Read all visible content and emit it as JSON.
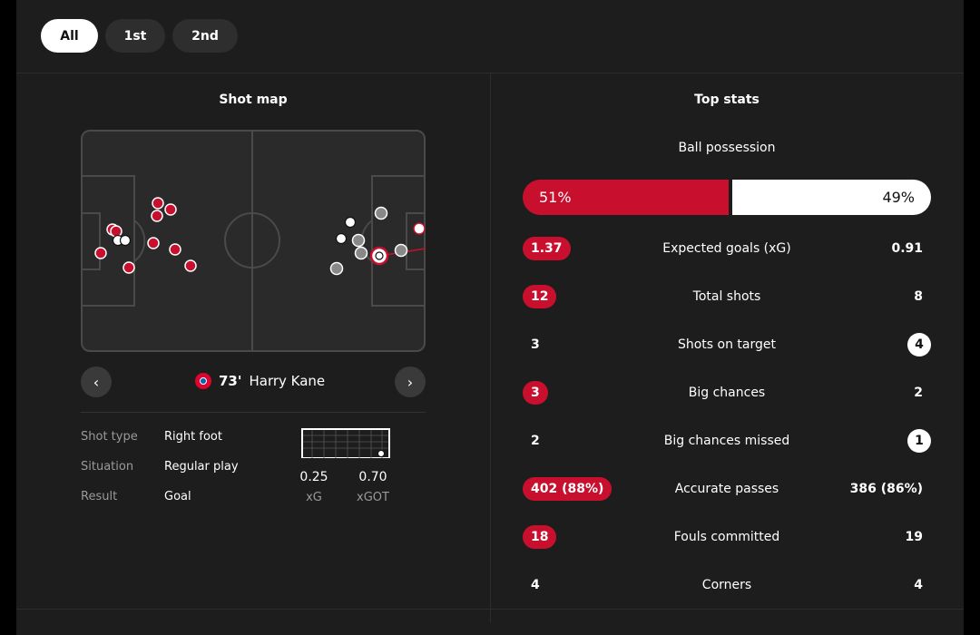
{
  "filters": {
    "all": "All",
    "first": "1st",
    "second": "2nd"
  },
  "shot_map": {
    "title": "Shot map",
    "player_minute": "73'",
    "player_name": "Harry Kane",
    "details": {
      "shot_type_label": "Shot type",
      "shot_type": "Right foot",
      "situation_label": "Situation",
      "situation": "Regular play",
      "result_label": "Result",
      "result": "Goal"
    },
    "xg": "0.25",
    "xg_label": "xG",
    "xgot": "0.70",
    "xgot_label": "xGOT"
  },
  "top_stats": {
    "title": "Top stats",
    "possession": {
      "label": "Ball possession",
      "home": "51%",
      "away": "49%",
      "home_share": 51
    },
    "rows": [
      {
        "label": "Expected goals (xG)",
        "home": "1.37",
        "away": "0.91",
        "home_hl": true,
        "away_hl": false
      },
      {
        "label": "Total shots",
        "home": "12",
        "away": "8",
        "home_hl": true,
        "away_hl": false
      },
      {
        "label": "Shots on target",
        "home": "3",
        "away": "4",
        "home_hl": false,
        "away_hl": true
      },
      {
        "label": "Big chances",
        "home": "3",
        "away": "2",
        "home_hl": true,
        "away_hl": false
      },
      {
        "label": "Big chances missed",
        "home": "2",
        "away": "1",
        "home_hl": false,
        "away_hl": true
      },
      {
        "label": "Accurate passes",
        "home": "402 (88%)",
        "away": "386 (86%)",
        "home_hl": true,
        "away_hl": false
      },
      {
        "label": "Fouls committed",
        "home": "18",
        "away": "19",
        "home_hl": true,
        "away_hl": false
      },
      {
        "label": "Corners",
        "home": "4",
        "away": "4",
        "home_hl": false,
        "away_hl": false
      }
    ]
  },
  "colors": {
    "home": "#c8102e",
    "away": "#ffffff",
    "panel": "#1d1d1d"
  }
}
